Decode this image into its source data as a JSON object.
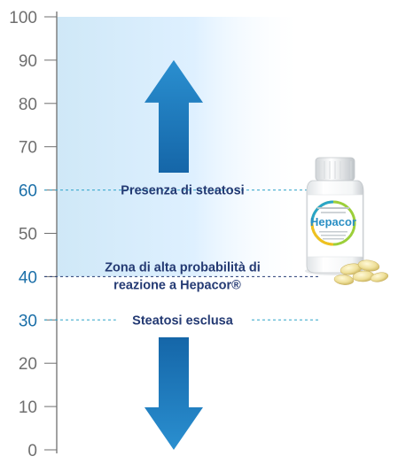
{
  "chart_data": {
    "type": "annotated-scale",
    "ylim": [
      0,
      100
    ],
    "ticks": [
      0,
      10,
      20,
      30,
      40,
      50,
      60,
      70,
      80,
      90,
      100
    ],
    "highlighted_ticks": [
      60,
      40,
      30
    ],
    "shaded_region": {
      "from": 40,
      "to": 100
    },
    "thresholds": [
      {
        "value": 60,
        "label": "Presenza di steatosi",
        "color": "#2fa3c9",
        "style": "dashed"
      },
      {
        "value": 40,
        "label_lines": [
          "Zona di alta probabilità di",
          "reazione a Hepacor®"
        ],
        "color": "#243a73",
        "style": "dashed"
      },
      {
        "value": 30,
        "label": "Steatosi esclusa",
        "color": "#2fa3c9",
        "style": "dashed"
      }
    ],
    "arrows": [
      {
        "direction": "up",
        "from": 64,
        "to": 90,
        "color": "#1f7fbf"
      },
      {
        "direction": "down",
        "from": 26,
        "to": 0,
        "color": "#1f7fbf"
      }
    ]
  },
  "product": {
    "brand": "Hepacor",
    "icon": "supplement-bottle-with-softgel-capsules"
  },
  "colors": {
    "axis": "#6f6f6f",
    "tick_text": "#6f6f6f",
    "tick_highlight": "#1b6fa8",
    "label_text": "#243a73",
    "shade": "#cfe8f7"
  }
}
